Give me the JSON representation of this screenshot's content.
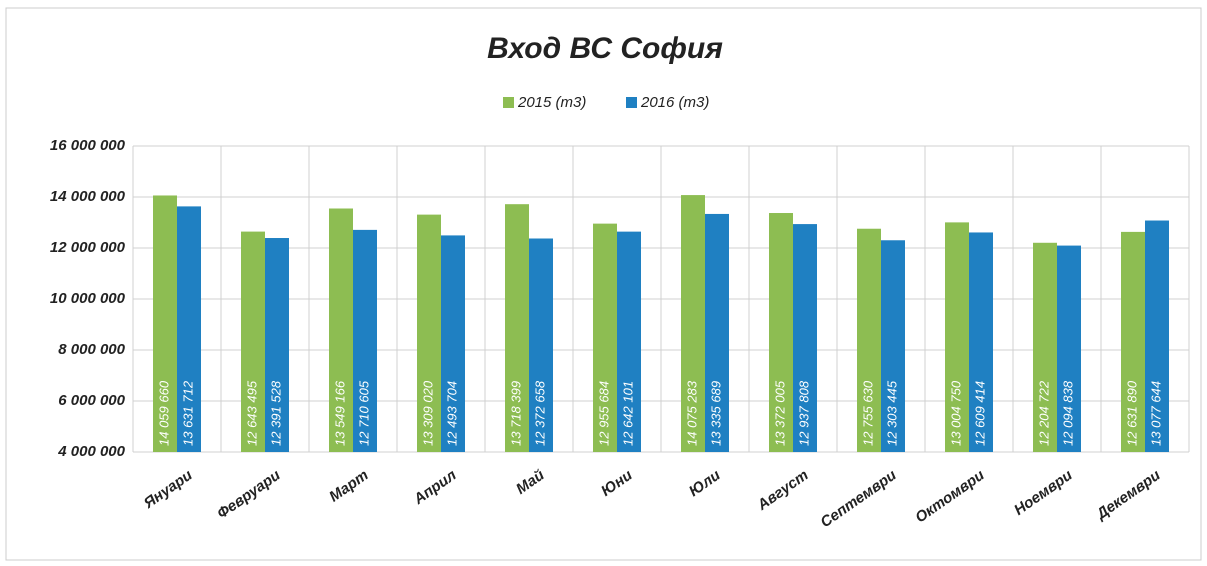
{
  "chart_data": {
    "type": "bar",
    "title": "Вход ВС София",
    "categories": [
      "Януари",
      "Февруари",
      "Март",
      "Април",
      "Май",
      "Юни",
      "Юли",
      "Август",
      "Септември",
      "Октомври",
      "Ноември",
      "Декември"
    ],
    "series": [
      {
        "name": "2015 (m3)",
        "color": "#8dbd52",
        "values": [
          14059660,
          12643495,
          13549166,
          13309020,
          13718399,
          12955684,
          14075283,
          13372005,
          12755630,
          13004750,
          12204722,
          12631890
        ],
        "value_labels": [
          "14 059 660",
          "12 643 495",
          "13 549 166",
          "13 309 020",
          "13 718 399",
          "12 955 684",
          "14 075 283",
          "13 372 005",
          "12 755 630",
          "13 004 750",
          "12 204 722",
          "12 631 890"
        ]
      },
      {
        "name": "2016 (m3)",
        "color": "#1f80c2",
        "values": [
          13631712,
          12391528,
          12710605,
          12493704,
          12372658,
          12642101,
          13335689,
          12937808,
          12303445,
          12609414,
          12094838,
          13077644
        ],
        "value_labels": [
          "13 631 712",
          "12 391 528",
          "12 710 605",
          "12 493 704",
          "12 372 658",
          "12 642 101",
          "13 335 689",
          "12 937 808",
          "12 303 445",
          "12 609 414",
          "12 094 838",
          "13 077 644"
        ]
      }
    ],
    "ylim": [
      4000000,
      16000000
    ],
    "yticks": [
      {
        "value": 4000000,
        "label": "4 000 000"
      },
      {
        "value": 6000000,
        "label": "6 000 000"
      },
      {
        "value": 8000000,
        "label": "8 000 000"
      },
      {
        "value": 10000000,
        "label": "10 000 000"
      },
      {
        "value": 12000000,
        "label": "12 000 000"
      },
      {
        "value": 14000000,
        "label": "14 000 000"
      },
      {
        "value": 16000000,
        "label": "16 000 000"
      }
    ],
    "grid": true,
    "legend": "top"
  }
}
